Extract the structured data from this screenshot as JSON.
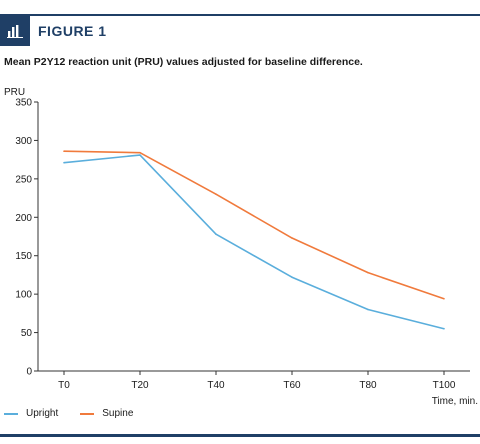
{
  "figure": {
    "label": "FIGURE 1",
    "icon": "bar-chart-icon",
    "accent_color": "#1f3f66"
  },
  "chart_data": {
    "type": "line",
    "title": "Mean P2Y12 reaction unit (PRU) values adjusted for baseline difference.",
    "ylabel": "PRU",
    "xlabel": "Time, min.",
    "categories": [
      "T0",
      "T20",
      "T40",
      "T60",
      "T80",
      "T100"
    ],
    "ylim": [
      0,
      350
    ],
    "yticks": [
      0,
      50,
      100,
      150,
      200,
      250,
      300,
      350
    ],
    "grid": false,
    "legend_position": "bottom-left",
    "series": [
      {
        "name": "Upright",
        "color": "#5aaedc",
        "values": [
          271,
          281,
          178,
          122,
          80,
          55
        ]
      },
      {
        "name": "Supine",
        "color": "#f07a3c",
        "values": [
          286,
          284,
          230,
          173,
          128,
          94
        ]
      }
    ]
  }
}
